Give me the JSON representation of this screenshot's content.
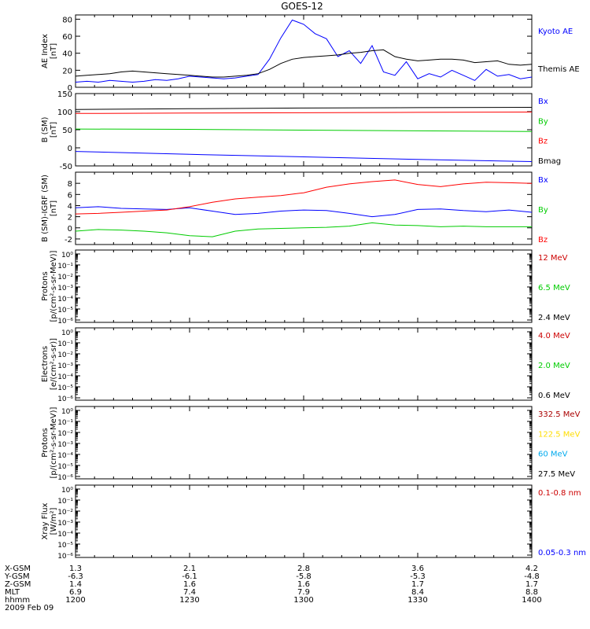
{
  "title": "GOES-12",
  "chart_data": [
    {
      "type": "line",
      "ylabel": [
        "AE Index",
        "[nT]"
      ],
      "ylim": [
        0,
        85
      ],
      "yticks": [
        0,
        20,
        40,
        60,
        80
      ],
      "series": [
        {
          "name": "Kyoto AE",
          "color": "#0000ff",
          "x": [
            0,
            3,
            6,
            9,
            12,
            15,
            18,
            21,
            24,
            27,
            30,
            33,
            36,
            39,
            42,
            45,
            48,
            51,
            54,
            57,
            60,
            63,
            66,
            69,
            72,
            75,
            78,
            81,
            84,
            87,
            90,
            93,
            96,
            99,
            102,
            105,
            108,
            111,
            114,
            117,
            120
          ],
          "y": [
            6,
            7,
            6,
            8,
            7,
            6,
            7,
            9,
            8,
            10,
            13,
            12,
            11,
            10,
            11,
            13,
            15,
            33,
            58,
            79,
            74,
            63,
            57,
            36,
            43,
            28,
            49,
            18,
            14,
            30,
            10,
            16,
            12,
            20,
            14,
            8,
            21,
            13,
            15,
            10,
            12
          ]
        },
        {
          "name": "Themis AE",
          "color": "#000000",
          "x": [
            0,
            3,
            6,
            9,
            12,
            15,
            18,
            21,
            24,
            27,
            30,
            33,
            36,
            39,
            42,
            45,
            48,
            51,
            54,
            57,
            60,
            63,
            66,
            69,
            72,
            75,
            78,
            81,
            84,
            87,
            90,
            93,
            96,
            99,
            102,
            105,
            108,
            111,
            114,
            117,
            120
          ],
          "y": [
            13,
            14,
            15,
            16,
            18,
            19,
            18,
            17,
            16,
            15,
            14,
            13,
            12,
            12,
            13,
            14,
            16,
            21,
            28,
            33,
            35,
            36,
            37,
            38,
            40,
            41,
            43,
            44,
            36,
            33,
            31,
            32,
            33,
            33,
            32,
            29,
            30,
            31,
            27,
            26,
            27
          ]
        }
      ]
    },
    {
      "type": "line",
      "ylabel": [
        "B (SM)",
        "[nT]"
      ],
      "ylim": [
        -50,
        150
      ],
      "yticks": [
        -50,
        0,
        50,
        100,
        150
      ],
      "series": [
        {
          "name": "Bx",
          "color": "#0000ff",
          "x": [
            0,
            30,
            60,
            90,
            120
          ],
          "y": [
            -10,
            -18,
            -25,
            -32,
            -38
          ]
        },
        {
          "name": "By",
          "color": "#00cc00",
          "x": [
            0,
            30,
            60,
            90,
            120
          ],
          "y": [
            52,
            51,
            49,
            47,
            45
          ]
        },
        {
          "name": "Bz",
          "color": "#ff0000",
          "x": [
            0,
            30,
            60,
            90,
            120
          ],
          "y": [
            95,
            96,
            97,
            98,
            99
          ]
        },
        {
          "name": "Bmag",
          "color": "#000000",
          "x": [
            0,
            30,
            60,
            90,
            120
          ],
          "y": [
            106,
            108,
            110,
            111,
            112
          ]
        }
      ]
    },
    {
      "type": "line",
      "ylabel": [
        "B (SM)-IGRF (SM)",
        "[nT]"
      ],
      "ylim": [
        -3,
        10
      ],
      "yticks": [
        -2,
        0,
        2,
        4,
        6,
        8
      ],
      "series": [
        {
          "name": "Bx",
          "color": "#0000ff",
          "x": [
            0,
            6,
            12,
            18,
            24,
            30,
            36,
            42,
            48,
            54,
            60,
            66,
            72,
            78,
            84,
            90,
            96,
            102,
            108,
            114,
            120
          ],
          "y": [
            3.6,
            3.8,
            3.5,
            3.4,
            3.3,
            3.6,
            3.0,
            2.4,
            2.6,
            3.0,
            3.2,
            3.1,
            2.6,
            2.0,
            2.4,
            3.3,
            3.4,
            3.1,
            2.9,
            3.2,
            2.8
          ]
        },
        {
          "name": "By",
          "color": "#00cc00",
          "x": [
            0,
            6,
            12,
            18,
            24,
            30,
            36,
            42,
            48,
            54,
            60,
            66,
            72,
            78,
            84,
            90,
            96,
            102,
            108,
            114,
            120
          ],
          "y": [
            -0.6,
            -0.3,
            -0.4,
            -0.6,
            -0.9,
            -1.4,
            -1.6,
            -0.6,
            -0.2,
            -0.1,
            0.0,
            0.1,
            0.3,
            0.9,
            0.5,
            0.4,
            0.2,
            0.3,
            0.2,
            0.2,
            0.2
          ]
        },
        {
          "name": "Bz",
          "color": "#ff0000",
          "x": [
            0,
            6,
            12,
            18,
            24,
            30,
            36,
            42,
            48,
            54,
            60,
            66,
            72,
            78,
            84,
            90,
            96,
            102,
            108,
            114,
            120
          ],
          "y": [
            2.5,
            2.6,
            2.8,
            3.0,
            3.2,
            3.8,
            4.6,
            5.2,
            5.5,
            5.8,
            6.3,
            7.3,
            7.9,
            8.3,
            8.6,
            7.8,
            7.4,
            7.9,
            8.2,
            8.1,
            8.0
          ]
        }
      ]
    },
    {
      "type": "line",
      "scale": "log",
      "ylabel": [
        "Protons",
        "[p/(cm²-s-sr-MeV)]"
      ],
      "yticks": [
        "10⁰",
        "10⁻¹",
        "10⁻²",
        "10⁻³",
        "10⁻⁴",
        "10⁻⁵",
        "10⁻⁶"
      ],
      "series": [
        {
          "name": "12 MeV",
          "color": "#cc0000"
        },
        {
          "name": "6.5 MeV",
          "color": "#00cc00"
        },
        {
          "name": "2.4 MeV",
          "color": "#000000"
        }
      ]
    },
    {
      "type": "line",
      "scale": "log",
      "ylabel": [
        "Electrons",
        "[e/(cm²-s-sr)]"
      ],
      "yticks": [
        "10⁰",
        "10⁻¹",
        "10⁻²",
        "10⁻³",
        "10⁻⁴",
        "10⁻⁵",
        "10⁻⁶"
      ],
      "series": [
        {
          "name": "4.0 MeV",
          "color": "#cc0000"
        },
        {
          "name": "2.0 MeV",
          "color": "#00cc00"
        },
        {
          "name": "0.6 MeV",
          "color": "#000000"
        }
      ]
    },
    {
      "type": "line",
      "scale": "log",
      "ylabel": [
        "Protons",
        "[p/(cm²-s-sr-MeV)]"
      ],
      "yticks": [
        "10⁰",
        "10⁻¹",
        "10⁻²",
        "10⁻³",
        "10⁻⁴",
        "10⁻⁵",
        "10⁻⁶"
      ],
      "series": [
        {
          "name": "332.5 MeV",
          "color": "#aa0000"
        },
        {
          "name": "122.5 MeV",
          "color": "#ffdd00"
        },
        {
          "name": "60 MeV",
          "color": "#00aaee"
        },
        {
          "name": "27.5 MeV",
          "color": "#000000"
        }
      ]
    },
    {
      "type": "line",
      "scale": "log",
      "ylabel": [
        "Xray  Flux",
        "[W/m²]"
      ],
      "yticks": [
        "10⁰",
        "10⁻¹",
        "10⁻²",
        "10⁻³",
        "10⁻⁴",
        "10⁻⁵",
        "10⁻⁶"
      ],
      "series": [
        {
          "name": "0.1-0.8 nm",
          "color": "#cc0000"
        },
        {
          "name": "0.05-0.3 nm",
          "color": "#0000ff"
        }
      ]
    }
  ],
  "orbit_table": {
    "labels": [
      "X-GSM",
      "Y-GSM",
      "Z-GSM",
      "MLT",
      "hhmm"
    ],
    "columns": [
      [
        "1.3",
        "-6.3",
        "1.4",
        "6.9",
        "1200"
      ],
      [
        "2.1",
        "-6.1",
        "1.6",
        "7.4",
        "1230"
      ],
      [
        "2.8",
        "-5.8",
        "1.6",
        "7.9",
        "1300"
      ],
      [
        "3.6",
        "-5.3",
        "1.7",
        "8.4",
        "1330"
      ],
      [
        "4.2",
        "-4.8",
        "1.7",
        "8.8",
        "1400"
      ]
    ],
    "date": "2009 Feb 09"
  }
}
